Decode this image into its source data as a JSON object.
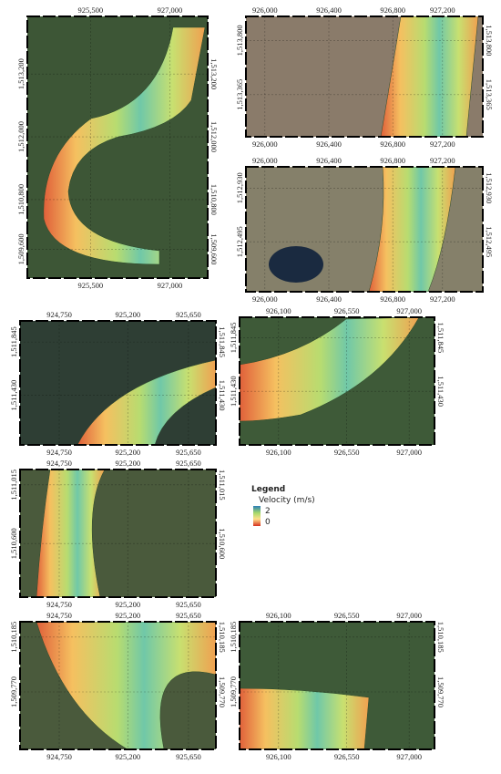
{
  "panels": [
    {
      "x_ticks": [
        "925,500",
        "927,000"
      ],
      "y_ticks": [
        "1,513,200",
        "1,512,000",
        "1,510,800",
        "1,509,600"
      ]
    },
    {
      "x_ticks": [
        "926,000",
        "926,400",
        "926,800",
        "927,200"
      ],
      "y_ticks": [
        "1,513,800",
        "1,513,365"
      ]
    },
    {
      "x_ticks": [
        "926,000",
        "926,400",
        "926,800",
        "927,200"
      ],
      "y_ticks": [
        "1,512,930",
        "1,512,495"
      ]
    },
    {
      "x_ticks": [
        "924,750",
        "925,200",
        "925,650"
      ],
      "y_ticks": [
        "1,511,845",
        "1,511,430"
      ]
    },
    {
      "x_ticks": [
        "926,100",
        "926,550",
        "927,000"
      ],
      "y_ticks": [
        "1,511,845",
        "1,511,430"
      ]
    },
    {
      "x_ticks": [
        "924,750",
        "925,200",
        "925,650"
      ],
      "y_ticks": [
        "1,511,015",
        "1,510,600"
      ]
    },
    {
      "x_ticks": [
        "924,750",
        "925,200",
        "925,650"
      ],
      "y_ticks": [
        "1,510,185",
        "1,509,770"
      ]
    },
    {
      "x_ticks": [
        "926,100",
        "926,550",
        "927,000"
      ],
      "y_ticks": [
        "1,510,185",
        "1,509,770"
      ]
    }
  ],
  "legend": {
    "title": "Legend",
    "subtitle": "Velocity (m/s)",
    "max": "2",
    "min": "0"
  }
}
